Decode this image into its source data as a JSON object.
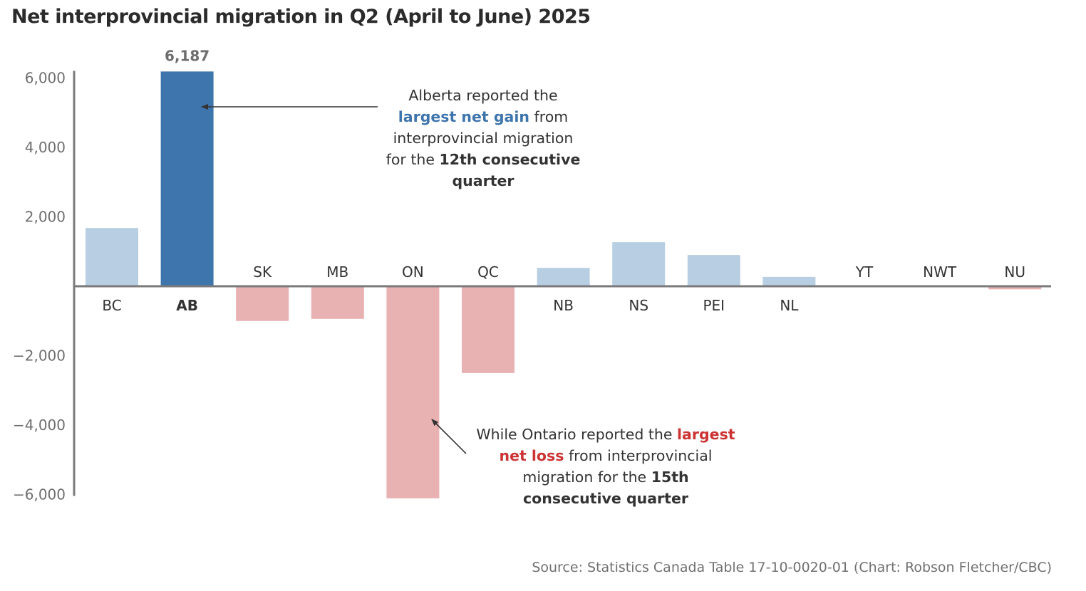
{
  "chart_data": {
    "type": "bar",
    "title": "Net interprovincial migration in Q2 (April to June) 2025",
    "xlabel": "",
    "ylabel": "",
    "ylim": [
      -6000,
      6000
    ],
    "yticks": [
      6000,
      4000,
      2000,
      -2000,
      -4000,
      -6000
    ],
    "ytick_labels": [
      "6,000",
      "4,000",
      "2,000",
      "−2,000",
      "−4,000",
      "−6,000"
    ],
    "grid": false,
    "categories": [
      "BC",
      "AB",
      "SK",
      "MB",
      "ON",
      "QC",
      "NB",
      "NS",
      "PEI",
      "NL",
      "YT",
      "NWT",
      "NU"
    ],
    "values": [
      1680,
      6187,
      -1000,
      -940,
      -6110,
      -2500,
      530,
      1270,
      900,
      270,
      0,
      0,
      -90
    ],
    "highlight": "AB",
    "data_labels": [
      {
        "category": "AB",
        "text": "6,187"
      }
    ],
    "colors": {
      "positive": "#b8cfe3",
      "highlight": "#3e75ad",
      "negative": "#e8b1b2",
      "axis": "#7a7a7a",
      "gain_text": "#3e75ad",
      "loss_text": "#cc3333"
    },
    "annotations": [
      {
        "target": "AB",
        "parts": [
          {
            "text": "Alberta reported the",
            "style": "normal",
            "br": true
          },
          {
            "text": "largest net gain",
            "style": "gain"
          },
          {
            "text": " from",
            "style": "normal",
            "br": true
          },
          {
            "text": "interprovincial migration",
            "style": "normal",
            "br": true
          },
          {
            "text": "for the ",
            "style": "normal"
          },
          {
            "text": "12th consecutive",
            "style": "bold",
            "br": true
          },
          {
            "text": "quarter",
            "style": "bold"
          }
        ]
      },
      {
        "target": "ON",
        "parts": [
          {
            "text": "While Ontario reported the ",
            "style": "normal"
          },
          {
            "text": "largest",
            "style": "loss",
            "br": true
          },
          {
            "text": "net loss",
            "style": "loss"
          },
          {
            "text": " from interprovincial",
            "style": "normal",
            "br": true
          },
          {
            "text": "migration for the ",
            "style": "normal"
          },
          {
            "text": "15th",
            "style": "bold",
            "br": true
          },
          {
            "text": "consecutive quarter",
            "style": "bold"
          }
        ]
      }
    ],
    "source": "Source: Statistics Canada Table 17-10-0020-01 (Chart: Robson Fletcher/CBC)"
  }
}
